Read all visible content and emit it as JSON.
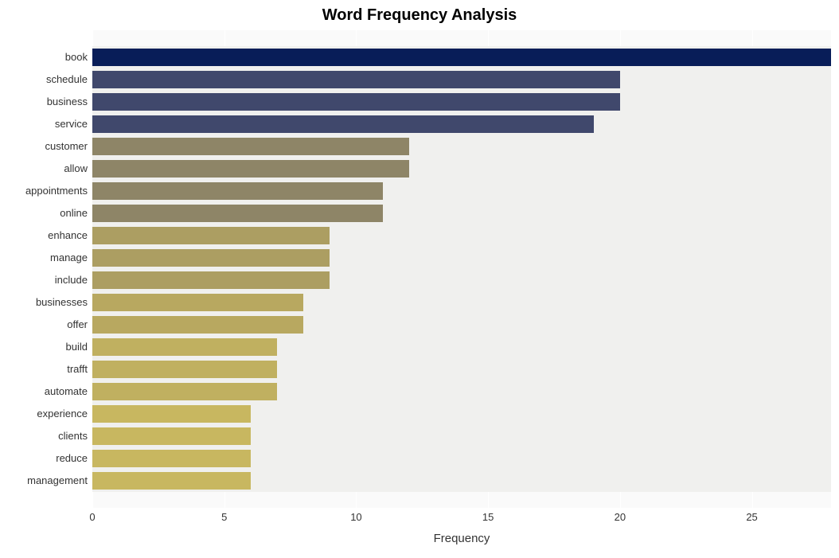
{
  "chart": {
    "type": "bar",
    "orientation": "horizontal",
    "title": "Word Frequency Analysis",
    "title_fontsize": 20,
    "title_fontweight": "bold",
    "xlabel": "Frequency",
    "xlabel_fontsize": 15,
    "background_color": "#ffffff",
    "plot_background_color": "#fafafa",
    "slot_background_color": "#f0f0ee",
    "grid_color": "#ffffff",
    "xlim": [
      0,
      28
    ],
    "xticks": [
      0,
      5,
      10,
      15,
      20,
      25
    ],
    "label_fontsize": 13,
    "bar_height_ratio": 0.79,
    "categories": [
      "book",
      "schedule",
      "business",
      "service",
      "customer",
      "allow",
      "appointments",
      "online",
      "enhance",
      "manage",
      "include",
      "businesses",
      "offer",
      "build",
      "trafft",
      "automate",
      "experience",
      "clients",
      "reduce",
      "management"
    ],
    "values": [
      28,
      20,
      20,
      19,
      12,
      12,
      11,
      11,
      9,
      9,
      9,
      8,
      8,
      7,
      7,
      7,
      6,
      6,
      6,
      6
    ],
    "bar_colors": [
      "#081d58",
      "#40486c",
      "#40486c",
      "#40486c",
      "#8e8567",
      "#8e8567",
      "#8e8567",
      "#8e8567",
      "#ac9e62",
      "#ac9e62",
      "#ac9e62",
      "#b8a860",
      "#b8a860",
      "#c0b060",
      "#c0b060",
      "#c0b060",
      "#c8b760",
      "#c8b760",
      "#c8b760",
      "#c8b760"
    ]
  }
}
